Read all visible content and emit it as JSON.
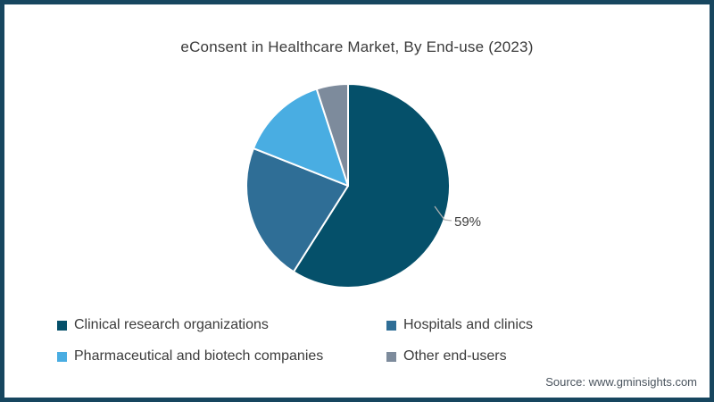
{
  "title": "eConsent in Healthcare Market, By End-use (2023)",
  "source_note": "Source: www.gminsights.com",
  "frame": {
    "border_color": "#17465f",
    "background_color": "#ffffff"
  },
  "chart_data": {
    "type": "pie",
    "title": "eConsent in Healthcare Market, By End-use (2023)",
    "start_angle_deg": 0,
    "direction": "clockwise",
    "legend_position": "bottom",
    "slices": [
      {
        "label": "Clinical research organizations",
        "value": 59,
        "color": "#05506a",
        "data_label": "59%"
      },
      {
        "label": "Hospitals and clinics",
        "value": 22,
        "color": "#2f6e96",
        "data_label": ""
      },
      {
        "label": "Pharmaceutical and biotech companies",
        "value": 14,
        "color": "#49ade2",
        "data_label": ""
      },
      {
        "label": "Other end-users",
        "value": 5,
        "color": "#7d8b9c",
        "data_label": ""
      }
    ],
    "annotations": [
      {
        "text": "59%",
        "attached_to": "Clinical research organizations"
      }
    ]
  }
}
